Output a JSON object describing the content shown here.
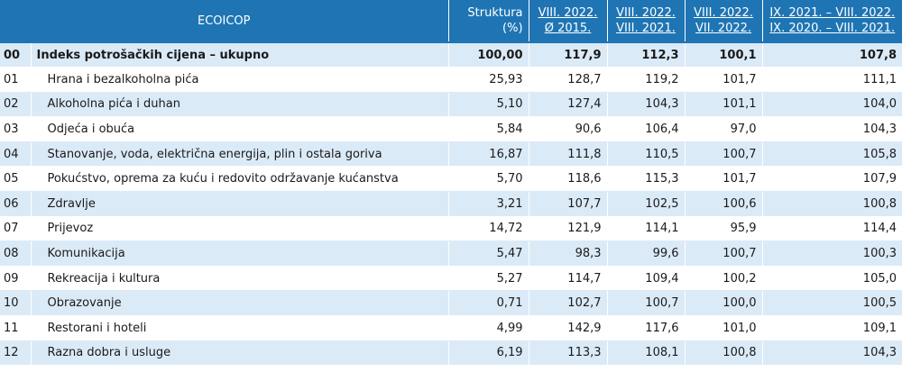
{
  "header": {
    "ecoicop": "ECOICOP",
    "struktura_line1": "Struktura",
    "struktura_line2": "(%)",
    "col1_line1": "VIII. 2022.",
    "col1_line2": "Ø 2015.",
    "col2_line1": "VIII. 2022.",
    "col2_line2": "VIII. 2021.",
    "col3_line1": "VIII. 2022.",
    "col3_line2": "VII. 2022.",
    "col4_line1": "IX. 2021. – VIII. 2022.",
    "col4_line2": "IX. 2020. – VIII. 2021."
  },
  "rows": [
    {
      "code": "00",
      "name": "Indeks potrošačkih cijena – ukupno",
      "struktura": "100,00",
      "v1": "117,9",
      "v2": "112,3",
      "v3": "100,1",
      "v4": "107,8"
    },
    {
      "code": "01",
      "name": "Hrana i bezalkoholna pića",
      "struktura": "25,93",
      "v1": "128,7",
      "v2": "119,2",
      "v3": "101,7",
      "v4": "111,1"
    },
    {
      "code": "02",
      "name": "Alkoholna pića i duhan",
      "struktura": "5,10",
      "v1": "127,4",
      "v2": "104,3",
      "v3": "101,1",
      "v4": "104,0"
    },
    {
      "code": "03",
      "name": "Odjeća i obuća",
      "struktura": "5,84",
      "v1": "90,6",
      "v2": "106,4",
      "v3": "97,0",
      "v4": "104,3"
    },
    {
      "code": "04",
      "name": "Stanovanje, voda, električna energija, plin i ostala goriva",
      "struktura": "16,87",
      "v1": "111,8",
      "v2": "110,5",
      "v3": "100,7",
      "v4": "105,8"
    },
    {
      "code": "05",
      "name": "Pokućstvo, oprema za kuću i redovito održavanje kućanstva",
      "struktura": "5,70",
      "v1": "118,6",
      "v2": "115,3",
      "v3": "101,7",
      "v4": "107,9"
    },
    {
      "code": "06",
      "name": "Zdravlje",
      "struktura": "3,21",
      "v1": "107,7",
      "v2": "102,5",
      "v3": "100,6",
      "v4": "100,8"
    },
    {
      "code": "07",
      "name": "Prijevoz",
      "struktura": "14,72",
      "v1": "121,9",
      "v2": "114,1",
      "v3": "95,9",
      "v4": "114,4"
    },
    {
      "code": "08",
      "name": "Komunikacija",
      "struktura": "5,47",
      "v1": "98,3",
      "v2": "99,6",
      "v3": "100,7",
      "v4": "100,3"
    },
    {
      "code": "09",
      "name": "Rekreacija i kultura",
      "struktura": "5,27",
      "v1": "114,7",
      "v2": "109,4",
      "v3": "100,2",
      "v4": "105,0"
    },
    {
      "code": "10",
      "name": "Obrazovanje",
      "struktura": "0,71",
      "v1": "102,7",
      "v2": "100,7",
      "v3": "100,0",
      "v4": "100,5"
    },
    {
      "code": "11",
      "name": "Restorani i hoteli",
      "struktura": "4,99",
      "v1": "142,9",
      "v2": "117,6",
      "v3": "101,0",
      "v4": "109,1"
    },
    {
      "code": "12",
      "name": "Razna dobra i usluge",
      "struktura": "6,19",
      "v1": "113,3",
      "v2": "108,1",
      "v3": "100,8",
      "v4": "104,3"
    }
  ]
}
